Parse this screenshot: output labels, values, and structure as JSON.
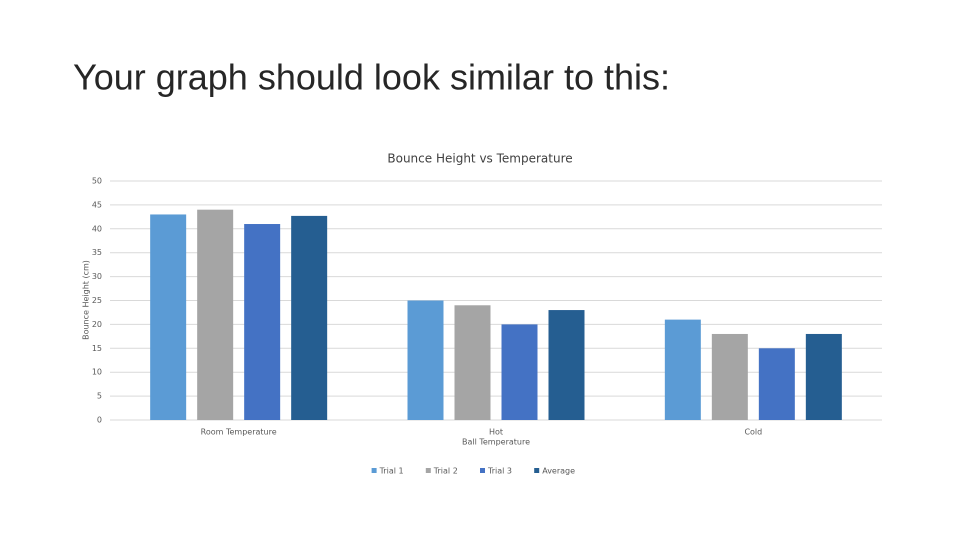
{
  "slide_title": "Your graph should look similar to this:",
  "chart_data": {
    "type": "bar",
    "title": "Bounce Height vs Temperature",
    "y_label": "Bounce Height (cm)",
    "x_label": "Ball Temperature",
    "categories": [
      "Room Temperature",
      "Hot",
      "Cold"
    ],
    "series": [
      {
        "name": "Trial 1",
        "color": "#5b9bd5",
        "values": [
          43,
          25,
          21
        ]
      },
      {
        "name": "Trial 2",
        "color": "#a5a5a5",
        "values": [
          44,
          24,
          18
        ]
      },
      {
        "name": "Trial 3",
        "color": "#4472c4",
        "values": [
          41,
          20,
          15
        ]
      },
      {
        "name": "Average",
        "color": "#255e91",
        "values": [
          42.7,
          23,
          18
        ]
      }
    ],
    "ylim": [
      0,
      50
    ],
    "yticks": [
      0,
      5,
      10,
      15,
      20,
      25,
      30,
      35,
      40,
      45,
      50
    ],
    "grid": true,
    "legend": "bottom"
  }
}
